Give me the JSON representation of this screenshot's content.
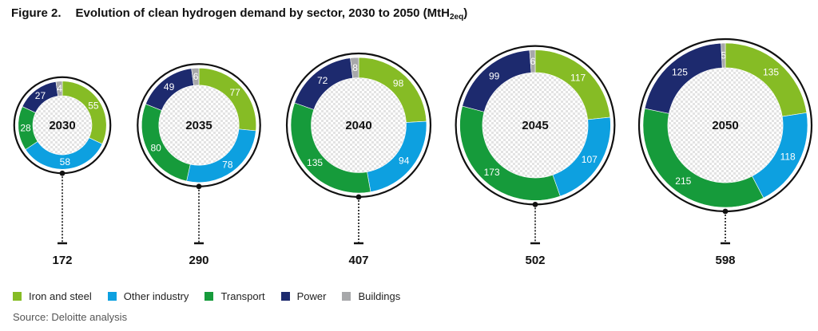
{
  "header": {
    "figure_label": "Figure 2.",
    "title_main": "Evolution of clean hydrogen demand by sector, 2030 to 2050 (MtH",
    "title_sub": "2eq",
    "title_end": ")"
  },
  "source": "Source: Deloitte analysis",
  "chart_data": {
    "type": "donut",
    "title": "Evolution of clean hydrogen demand by sector, 2030 to 2050 (MtH2eq)",
    "unit": "MtH2eq",
    "series": [
      {
        "name": "Iron and steel",
        "color": "#86bc25"
      },
      {
        "name": "Other industry",
        "color": "#0da0e0"
      },
      {
        "name": "Transport",
        "color": "#169b3b"
      },
      {
        "name": "Power",
        "color": "#1d2a6e"
      },
      {
        "name": "Buildings",
        "color": "#a7a8aa"
      }
    ],
    "years": [
      {
        "year": "2030",
        "total": "172",
        "values": [
          55,
          58,
          28,
          27,
          4
        ]
      },
      {
        "year": "2035",
        "total": "290",
        "values": [
          77,
          78,
          80,
          49,
          6
        ]
      },
      {
        "year": "2040",
        "total": "407",
        "values": [
          98,
          94,
          135,
          72,
          8
        ]
      },
      {
        "year": "2045",
        "total": "502",
        "values": [
          117,
          107,
          173,
          99,
          6
        ]
      },
      {
        "year": "2050",
        "total": "598",
        "values": [
          135,
          118,
          215,
          125,
          5
        ]
      }
    ]
  }
}
